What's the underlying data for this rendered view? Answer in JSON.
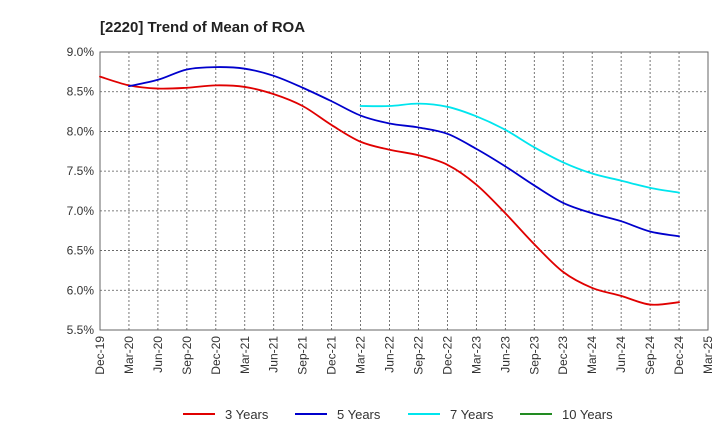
{
  "chart_data": {
    "type": "line",
    "title": "[2220]  Trend of Mean of ROA",
    "xlabel": "",
    "ylabel": "",
    "ylim": [
      5.5,
      9.0
    ],
    "y_ticks": [
      5.5,
      6.0,
      6.5,
      7.0,
      7.5,
      8.0,
      8.5,
      9.0
    ],
    "y_tick_labels": [
      "5.5%",
      "6.0%",
      "6.5%",
      "7.0%",
      "7.5%",
      "8.0%",
      "8.5%",
      "9.0%"
    ],
    "categories": [
      "Dec-19",
      "Mar-20",
      "Jun-20",
      "Sep-20",
      "Dec-20",
      "Mar-21",
      "Jun-21",
      "Sep-21",
      "Dec-21",
      "Mar-22",
      "Jun-22",
      "Sep-22",
      "Dec-22",
      "Mar-23",
      "Jun-23",
      "Sep-23",
      "Dec-23",
      "Mar-24",
      "Jun-24",
      "Sep-24",
      "Dec-24",
      "Mar-25"
    ],
    "grid": true,
    "legend_position": "bottom",
    "series": [
      {
        "name": "3 Years",
        "color": "#e00000",
        "values": [
          8.69,
          8.58,
          8.54,
          8.55,
          8.58,
          8.56,
          8.47,
          8.32,
          8.08,
          7.87,
          7.77,
          7.7,
          7.58,
          7.33,
          6.97,
          6.58,
          6.23,
          6.03,
          5.93,
          5.82,
          5.85,
          null
        ]
      },
      {
        "name": "5 Years",
        "color": "#0000cc",
        "values": [
          null,
          8.57,
          8.65,
          8.78,
          8.81,
          8.79,
          8.7,
          8.55,
          8.38,
          8.2,
          8.1,
          8.05,
          7.97,
          7.78,
          7.56,
          7.32,
          7.1,
          6.97,
          6.87,
          6.74,
          6.68,
          null
        ]
      },
      {
        "name": "7 Years",
        "color": "#00e5ee",
        "values": [
          null,
          null,
          null,
          null,
          null,
          null,
          null,
          null,
          null,
          8.32,
          8.32,
          8.35,
          8.31,
          8.19,
          8.02,
          7.8,
          7.61,
          7.47,
          7.38,
          7.29,
          7.23,
          null
        ]
      },
      {
        "name": "10 Years",
        "color": "#228b22",
        "values": [
          null,
          null,
          null,
          null,
          null,
          null,
          null,
          null,
          null,
          null,
          null,
          null,
          null,
          null,
          null,
          null,
          null,
          null,
          null,
          null,
          null,
          null
        ]
      }
    ]
  }
}
